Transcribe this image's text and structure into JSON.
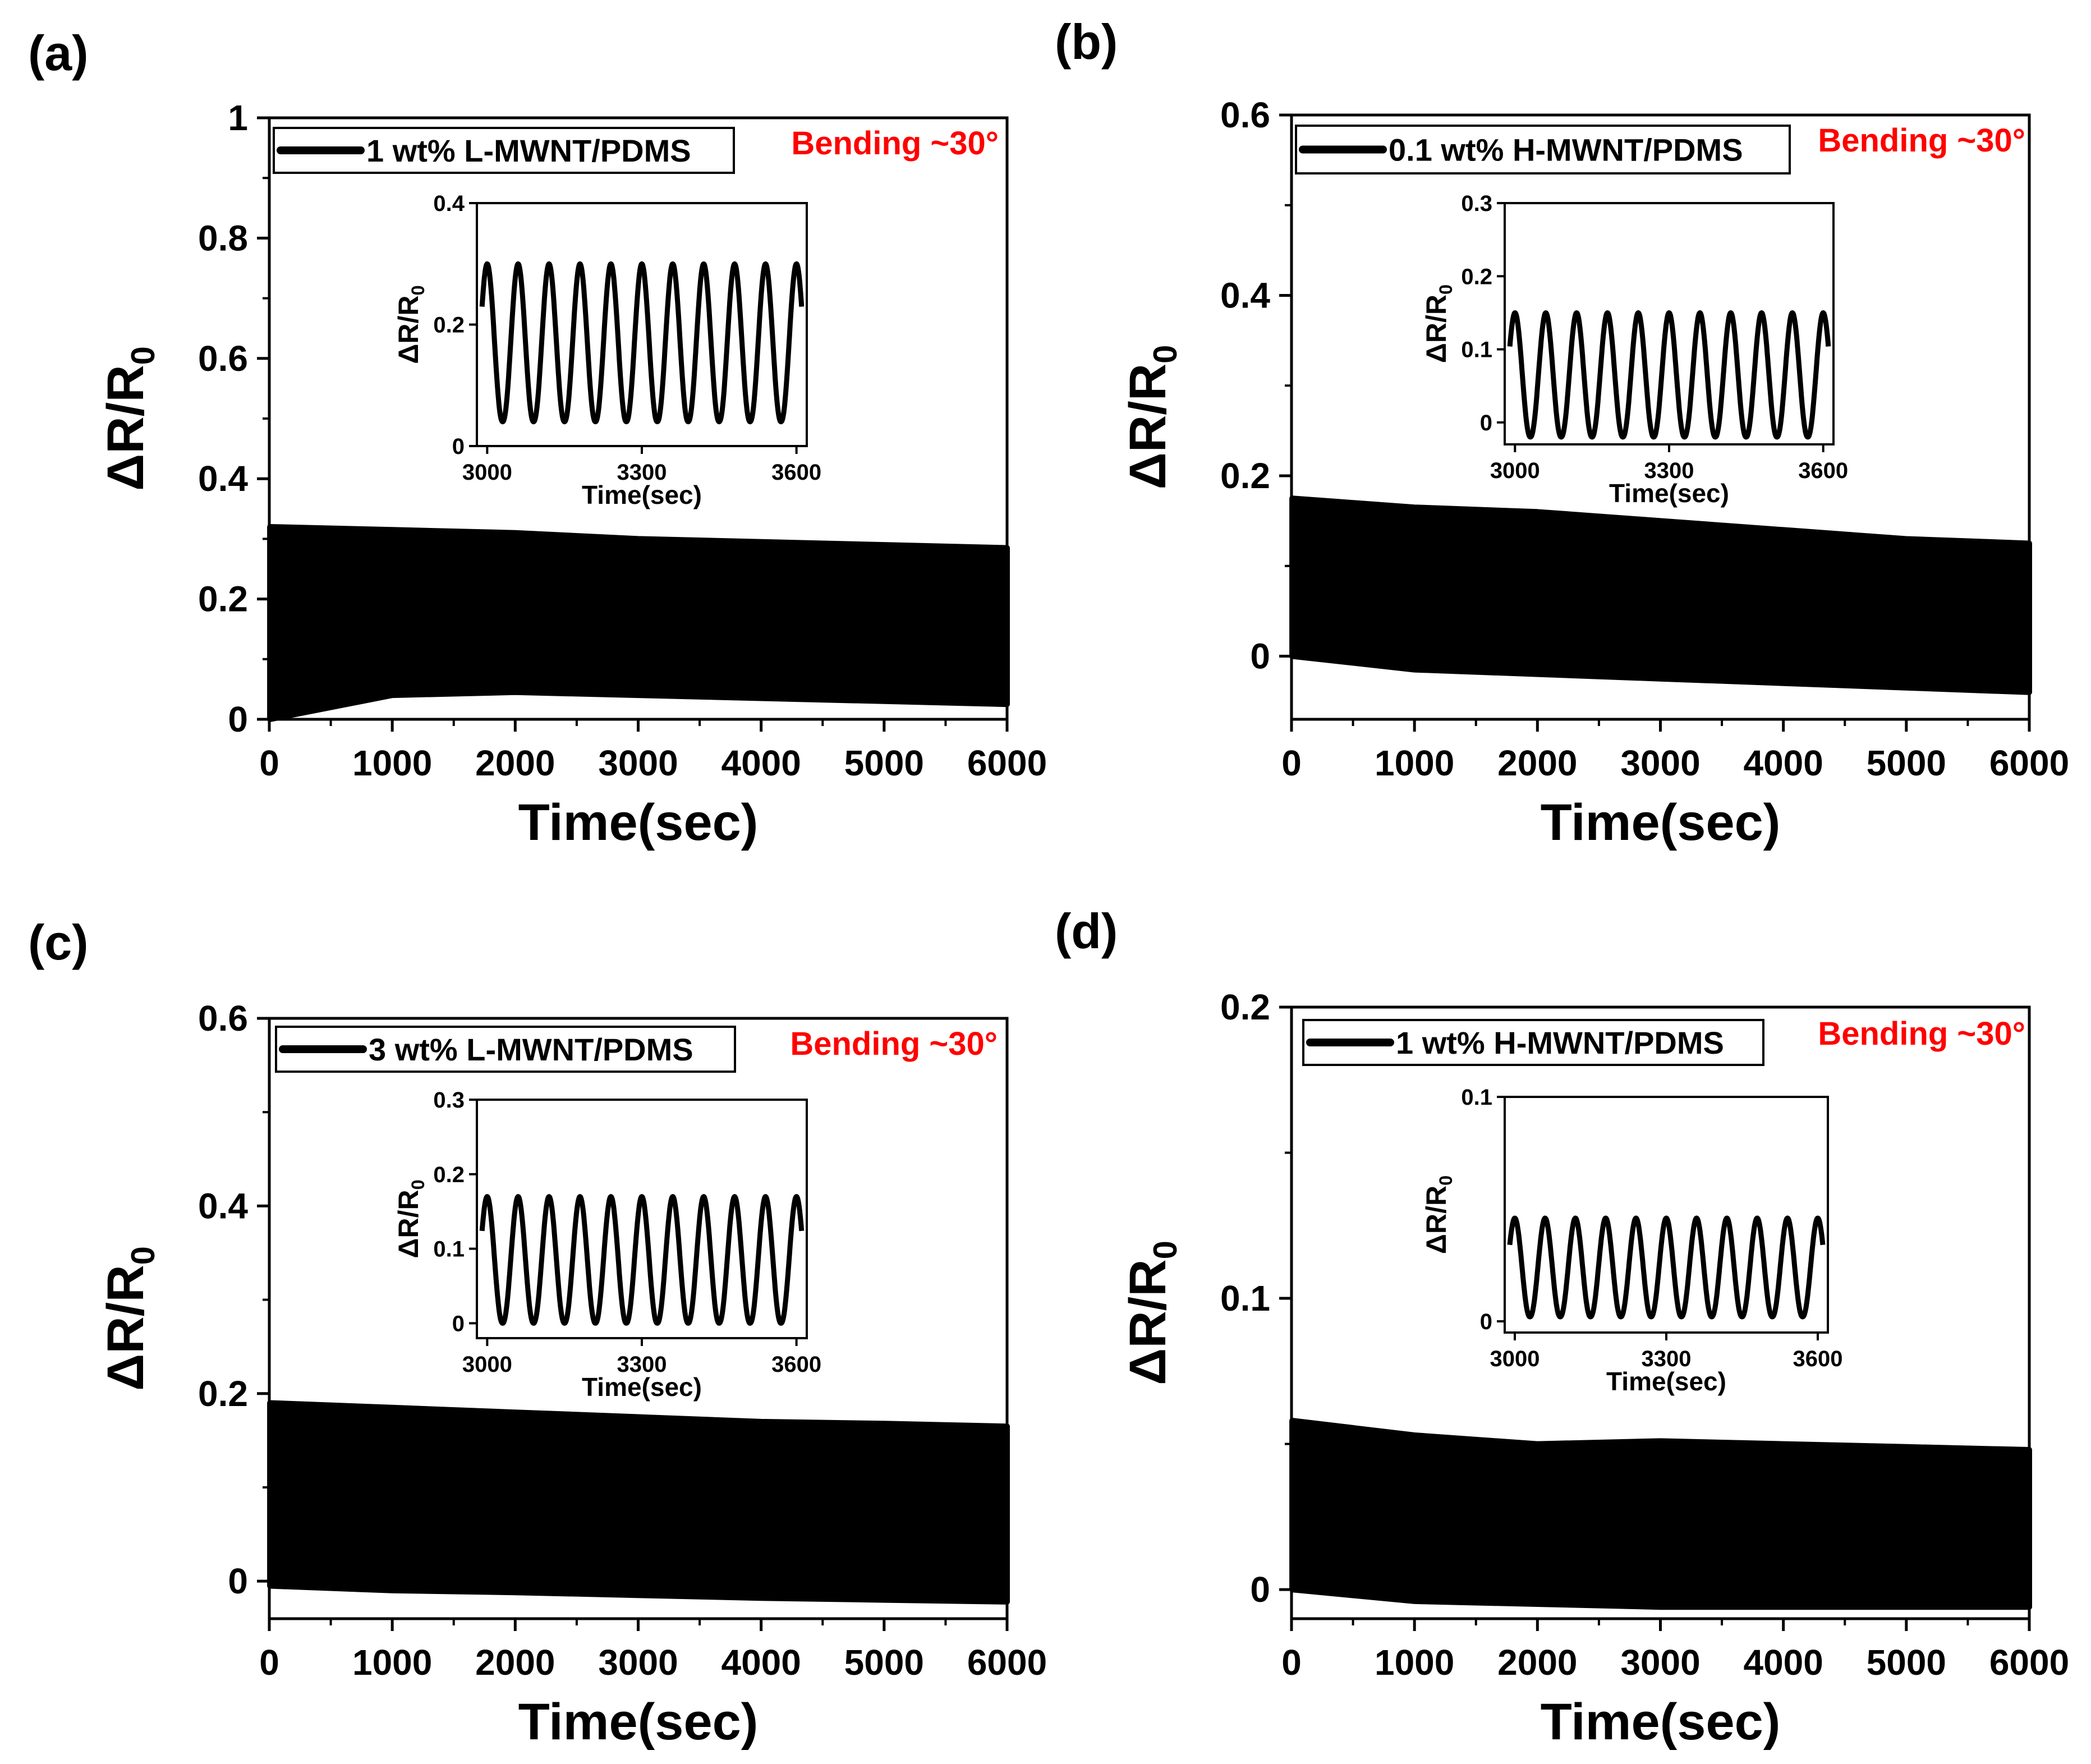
{
  "figure": {
    "panels": [
      {
        "label": "(a)",
        "legend": "1 wt% L-MWNT/PDMS",
        "condition": "Bending ~30°"
      },
      {
        "label": "(b)",
        "legend": "0.1 wt% H-MWNT/PDMS",
        "condition": "Bending ~30°"
      },
      {
        "label": "(c)",
        "legend": "3 wt% L-MWNT/PDMS",
        "condition": "Bending ~30°"
      },
      {
        "label": "(d)",
        "legend": "1 wt% H-MWNT/PDMS",
        "condition": "Bending ~30°"
      }
    ]
  },
  "colors": {
    "trace": "#000000",
    "condition_text": "#ff0000",
    "axes": "#000000"
  },
  "chart_data": [
    {
      "type": "line",
      "panel": "(a)",
      "title": "",
      "xlabel": "Time(sec)",
      "ylabel": "ΔR/R0",
      "xlim": [
        0,
        6000
      ],
      "ylim": [
        0,
        1
      ],
      "xticks": [
        "0",
        "1000",
        "2000",
        "3000",
        "4000",
        "5000",
        "6000"
      ],
      "yticks": [
        "0",
        "0.2",
        "0.4",
        "0.6",
        "0.8",
        "1"
      ],
      "series": [
        {
          "name": "1 wt% L-MWNT/PDMS",
          "x": [
            0,
            1000,
            2000,
            3000,
            4000,
            5000,
            6000
          ],
          "upper": [
            0.32,
            0.315,
            0.31,
            0.3,
            0.295,
            0.29,
            0.285
          ],
          "lower": [
            0.0,
            0.04,
            0.045,
            0.04,
            0.035,
            0.03,
            0.025
          ]
        }
      ],
      "annotation": "Bending ~30°",
      "inset": {
        "xlabel": "Time(sec)",
        "ylabel": "ΔR/R0",
        "xlim": [
          2980,
          3620
        ],
        "ylim": [
          0,
          0.4
        ],
        "xticks": [
          "3000",
          "3300",
          "3600"
        ],
        "yticks": [
          "0",
          "0.2",
          "0.4"
        ],
        "cycles": 11,
        "peak": 0.3,
        "trough": 0.04
      }
    },
    {
      "type": "line",
      "panel": "(b)",
      "title": "",
      "xlabel": "Time(sec)",
      "ylabel": "ΔR/R0",
      "xlim": [
        0,
        6000
      ],
      "ylim": [
        -0.07,
        0.6
      ],
      "xticks": [
        "0",
        "1000",
        "2000",
        "3000",
        "4000",
        "5000",
        "6000"
      ],
      "yticks": [
        "0",
        "0.2",
        "0.4",
        "0.6"
      ],
      "series": [
        {
          "name": "0.1 wt% H-MWNT/PDMS",
          "x": [
            0,
            1000,
            2000,
            3000,
            4000,
            5000,
            6000
          ],
          "upper": [
            0.175,
            0.165,
            0.16,
            0.15,
            0.14,
            0.13,
            0.125
          ],
          "lower": [
            0.0,
            -0.015,
            -0.02,
            -0.025,
            -0.03,
            -0.035,
            -0.04
          ]
        }
      ],
      "annotation": "Bending ~30°",
      "inset": {
        "xlabel": "Time(sec)",
        "ylabel": "ΔR/R0",
        "xlim": [
          2980,
          3620
        ],
        "ylim": [
          -0.03,
          0.3
        ],
        "xticks": [
          "3000",
          "3300",
          "3600"
        ],
        "yticks": [
          "0",
          "0.1",
          "0.2",
          "0.3"
        ],
        "cycles": 11,
        "peak": 0.15,
        "trough": -0.02
      }
    },
    {
      "type": "line",
      "panel": "(c)",
      "title": "",
      "xlabel": "Time(sec)",
      "ylabel": "ΔR/R0",
      "xlim": [
        0,
        6000
      ],
      "ylim": [
        -0.04,
        0.6
      ],
      "xticks": [
        "0",
        "1000",
        "2000",
        "3000",
        "4000",
        "5000",
        "6000"
      ],
      "yticks": [
        "0",
        "0.2",
        "0.4",
        "0.6"
      ],
      "series": [
        {
          "name": "3 wt% L-MWNT/PDMS",
          "x": [
            0,
            1000,
            2000,
            3000,
            4000,
            5000,
            6000
          ],
          "upper": [
            0.19,
            0.185,
            0.18,
            0.175,
            0.17,
            0.168,
            0.165
          ],
          "lower": [
            -0.005,
            -0.01,
            -0.012,
            -0.015,
            -0.018,
            -0.02,
            -0.022
          ]
        }
      ],
      "annotation": "Bending ~30°",
      "inset": {
        "xlabel": "Time(sec)",
        "ylabel": "ΔR/R0",
        "xlim": [
          2980,
          3620
        ],
        "ylim": [
          -0.02,
          0.3
        ],
        "xticks": [
          "3000",
          "3300",
          "3600"
        ],
        "yticks": [
          "0",
          "0.1",
          "0.2",
          "0.3"
        ],
        "cycles": 11,
        "peak": 0.17,
        "trough": 0.0
      }
    },
    {
      "type": "line",
      "panel": "(d)",
      "title": "",
      "xlabel": "Time(sec)",
      "ylabel": "ΔR/R0",
      "xlim": [
        0,
        6000
      ],
      "ylim": [
        -0.01,
        0.2
      ],
      "xticks": [
        "0",
        "1000",
        "2000",
        "3000",
        "4000",
        "5000",
        "6000"
      ],
      "yticks": [
        "0",
        "0.1",
        "0.2"
      ],
      "series": [
        {
          "name": "1 wt% H-MWNT/PDMS",
          "x": [
            0,
            1000,
            2000,
            3000,
            4000,
            5000,
            6000
          ],
          "upper": [
            0.058,
            0.053,
            0.05,
            0.051,
            0.05,
            0.049,
            0.048
          ],
          "lower": [
            0.0,
            -0.004,
            -0.005,
            -0.006,
            -0.006,
            -0.006,
            -0.006
          ]
        }
      ],
      "annotation": "Bending ~30°",
      "inset": {
        "xlabel": "Time(sec)",
        "ylabel": "ΔR/R0",
        "xlim": [
          2980,
          3620
        ],
        "ylim": [
          -0.005,
          0.1
        ],
        "xticks": [
          "3000",
          "3300",
          "3600"
        ],
        "yticks": [
          "0",
          "0.1"
        ],
        "cycles": 11,
        "peak": 0.046,
        "trough": 0.002
      }
    }
  ]
}
